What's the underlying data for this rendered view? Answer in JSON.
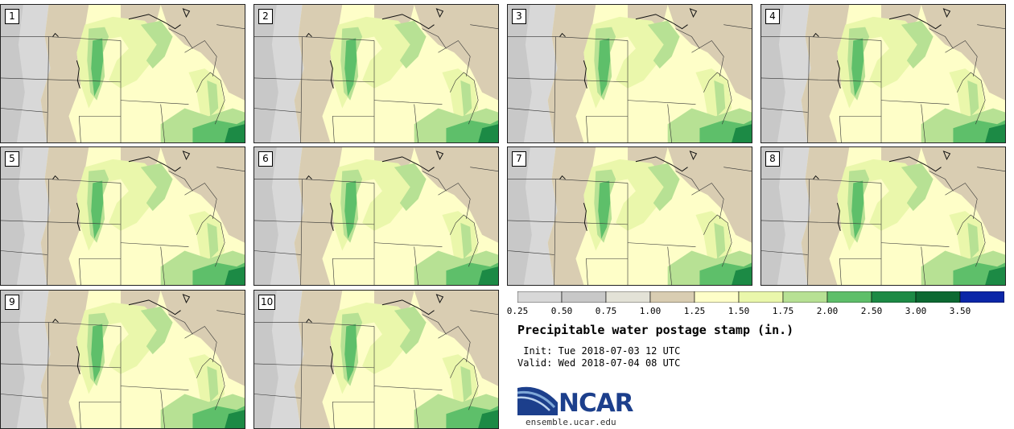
{
  "panels": [
    {
      "label": "1"
    },
    {
      "label": "2"
    },
    {
      "label": "3"
    },
    {
      "label": "4"
    },
    {
      "label": "5"
    },
    {
      "label": "6"
    },
    {
      "label": "7"
    },
    {
      "label": "8"
    },
    {
      "label": "9"
    },
    {
      "label": "10"
    }
  ],
  "colorbar": {
    "colors": [
      "#d8d8d8",
      "#c8c8c8",
      "#e3e2d7",
      "#d9cdb2",
      "#fefec8",
      "#eaf7ab",
      "#b7e194",
      "#5ebf6a",
      "#1c8a45",
      "#0c6932",
      "#0b26a8"
    ],
    "labels": [
      "0.25",
      "0.50",
      "0.75",
      "1.00",
      "1.25",
      "1.50",
      "1.75",
      "2.00",
      "2.50",
      "3.00",
      "3.50"
    ]
  },
  "title": "Precipitable water postage stamp (in.)",
  "init": " Init: Tue 2018-07-03 12 UTC",
  "valid": "Valid: Wed 2018-07-04 08 UTC",
  "logo": {
    "name": "NCAR",
    "url": "ensemble.ucar.edu",
    "color": "#1c3f8c"
  }
}
